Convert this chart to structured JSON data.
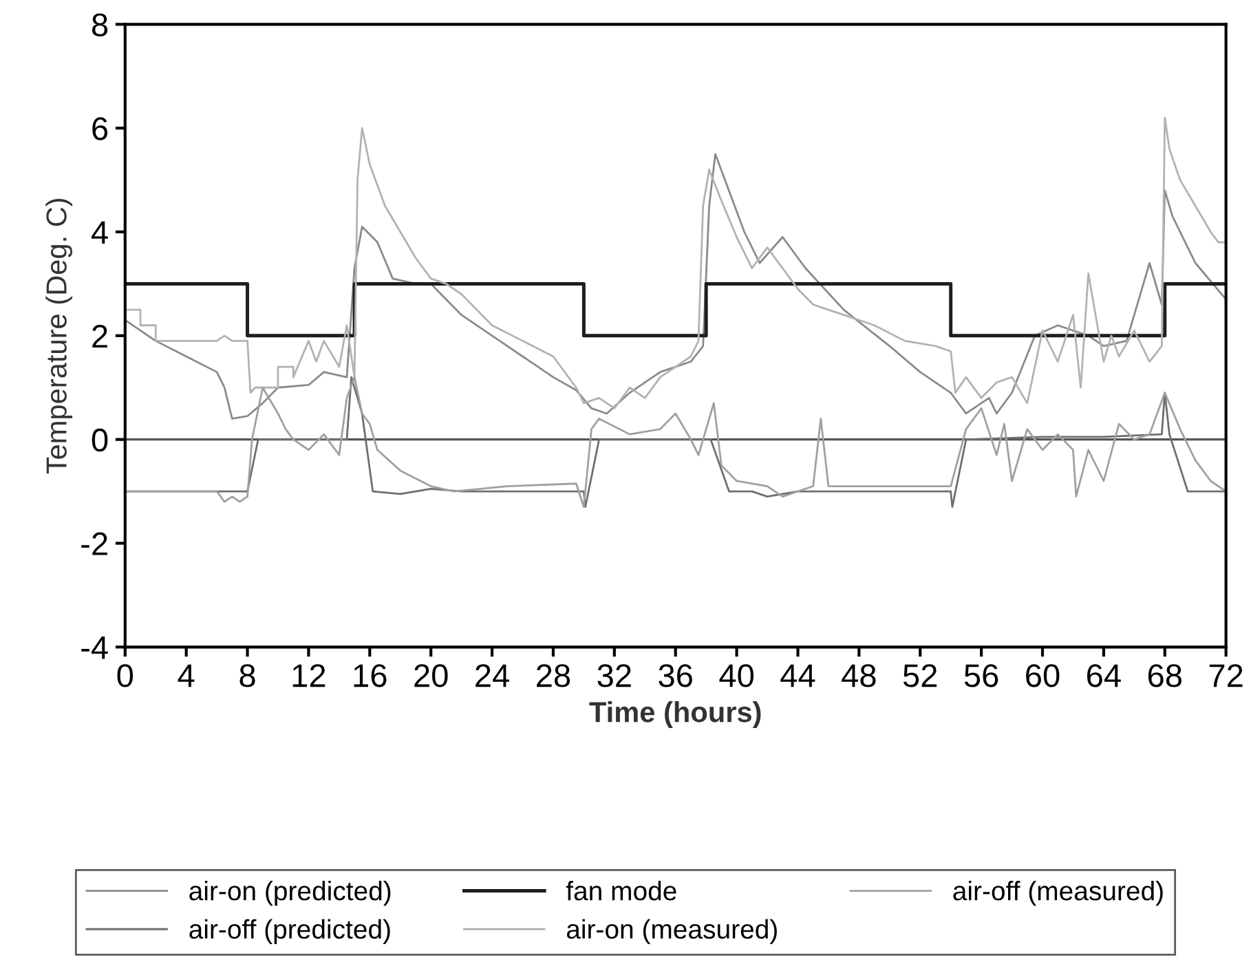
{
  "chart_data": {
    "type": "line",
    "xlabel": "Time (hours)",
    "ylabel": "Temperature (Deg. C)",
    "xlim": [
      0,
      72
    ],
    "ylim": [
      -4,
      8
    ],
    "xticks": [
      0,
      4,
      8,
      12,
      16,
      20,
      24,
      28,
      32,
      36,
      40,
      44,
      48,
      52,
      56,
      60,
      64,
      68,
      72
    ],
    "yticks": [
      -4,
      -2,
      0,
      2,
      4,
      6,
      8
    ],
    "grid": false,
    "legend": "bottom",
    "marker": "none",
    "line_style": "solid",
    "ref_lines": [
      {
        "axis": "y",
        "value": 0,
        "color": "#555555"
      }
    ],
    "series": [
      {
        "name": "air-on (predicted)",
        "color": "#8a8a8a",
        "x": [
          0,
          2,
          4,
          6,
          6.5,
          7,
          8,
          9,
          10,
          12,
          13,
          14.5,
          15,
          15.5,
          16.5,
          17.5,
          19,
          20,
          22,
          24,
          26,
          28,
          29.5,
          30.5,
          31.5,
          33,
          35,
          37,
          37.8,
          38.2,
          38.6,
          40.5,
          41.5,
          43,
          44.5,
          47,
          50,
          52,
          54,
          55,
          56.5,
          57,
          58,
          59.5,
          61,
          63,
          64,
          65.5,
          66.5,
          67,
          67.8,
          68,
          68.5,
          70,
          72
        ],
        "values": [
          2.3,
          1.9,
          1.6,
          1.3,
          1.0,
          0.4,
          0.45,
          0.7,
          1.0,
          1.05,
          1.3,
          1.2,
          3.3,
          4.1,
          3.8,
          3.1,
          3.0,
          3.0,
          2.4,
          2.0,
          1.6,
          1.2,
          0.95,
          0.6,
          0.5,
          0.9,
          1.3,
          1.5,
          1.8,
          4.5,
          5.5,
          4.0,
          3.4,
          3.9,
          3.3,
          2.5,
          1.8,
          1.3,
          0.9,
          0.5,
          0.8,
          0.5,
          0.9,
          2.0,
          2.2,
          2.0,
          1.8,
          1.9,
          2.9,
          3.4,
          2.6,
          4.8,
          4.3,
          3.4,
          2.7
        ]
      },
      {
        "name": "air-off (predicted)",
        "color": "#6e6e6e",
        "x": [
          0,
          8,
          8.7,
          14.5,
          14.8,
          15.5,
          16.2,
          18,
          20,
          22,
          26,
          30,
          30.1,
          31,
          38.3,
          39.5,
          41,
          42,
          44,
          46,
          50,
          54,
          54.1,
          55,
          60,
          64,
          67.8,
          68,
          68.3,
          69.5,
          72
        ],
        "values": [
          -1,
          -1,
          0,
          0,
          1.2,
          0.5,
          -1,
          -1.05,
          -0.95,
          -1,
          -1,
          -1,
          -1.3,
          0,
          0,
          -1,
          -1,
          -1.1,
          -1,
          -1,
          -1,
          -1,
          -1.3,
          0,
          0.05,
          0.05,
          0.1,
          0.9,
          0.1,
          -1,
          -1
        ]
      },
      {
        "name": "fan mode",
        "color": "#1e1e1e",
        "x": [
          0,
          8,
          8,
          15,
          15,
          30,
          30,
          38,
          38,
          54,
          54,
          68,
          68,
          72
        ],
        "values": [
          3,
          3,
          2,
          2,
          3,
          3,
          2,
          2,
          3,
          3,
          2,
          2,
          3,
          3
        ]
      },
      {
        "name": "air-on (measured)",
        "color": "#b2b2b2",
        "x": [
          0,
          1,
          1,
          2,
          2,
          6,
          6.5,
          7,
          8,
          8.2,
          8.5,
          10,
          10,
          11,
          11,
          12,
          12.5,
          13,
          14,
          14.5,
          15,
          15.2,
          15.5,
          16,
          17,
          18,
          19,
          20,
          21,
          22,
          23,
          24,
          26,
          28,
          29.5,
          30,
          31,
          32,
          33,
          34,
          35,
          36,
          37,
          37.5,
          37.8,
          38.2,
          39,
          40,
          41,
          42,
          43,
          44,
          45,
          47,
          49,
          51,
          53,
          54,
          54.3,
          55,
          56,
          57,
          58,
          59,
          60,
          61,
          62,
          62.5,
          63,
          64,
          64.5,
          65,
          66,
          67,
          67.8,
          68,
          68.3,
          69,
          70,
          71,
          71.5,
          72
        ],
        "values": [
          2.5,
          2.5,
          2.2,
          2.2,
          1.9,
          1.9,
          2.0,
          1.9,
          1.9,
          0.9,
          1.0,
          1.0,
          1.4,
          1.4,
          1.2,
          1.9,
          1.5,
          1.9,
          1.4,
          2.2,
          1.2,
          5.0,
          6.0,
          5.3,
          4.5,
          4.0,
          3.5,
          3.1,
          3.0,
          2.8,
          2.5,
          2.2,
          1.9,
          1.6,
          1.0,
          0.7,
          0.8,
          0.6,
          1.0,
          0.8,
          1.2,
          1.4,
          1.6,
          1.9,
          4.5,
          5.2,
          4.6,
          3.9,
          3.3,
          3.7,
          3.3,
          2.9,
          2.6,
          2.4,
          2.2,
          1.9,
          1.8,
          1.7,
          0.9,
          1.2,
          0.8,
          1.1,
          1.2,
          0.7,
          2.1,
          1.5,
          2.4,
          1.0,
          3.2,
          1.5,
          2.0,
          1.6,
          2.1,
          1.5,
          1.8,
          6.2,
          5.6,
          5.0,
          4.5,
          4.0,
          3.8,
          3.8
        ]
      },
      {
        "name": "air-off (measured)",
        "color": "#a0a0a0",
        "x": [
          0,
          6,
          6.5,
          7,
          7.5,
          8,
          8.3,
          9,
          10,
          10.5,
          11,
          12,
          13,
          14,
          14.5,
          15,
          15.5,
          16,
          16.5,
          18,
          20,
          21.5,
          25,
          29.5,
          30,
          30.5,
          31,
          33,
          35,
          36,
          37,
          37.5,
          38.5,
          39,
          40,
          42,
          43,
          45,
          45.5,
          46,
          50,
          54,
          55,
          56,
          57,
          57.5,
          58,
          59,
          60,
          61,
          62,
          62.2,
          63,
          64,
          65,
          66,
          67,
          68,
          69,
          70,
          71,
          72
        ],
        "values": [
          -1,
          -1,
          -1.2,
          -1.1,
          -1.2,
          -1.1,
          0,
          1.0,
          0.5,
          0.2,
          0,
          -0.2,
          0.1,
          -0.3,
          0.8,
          1.2,
          0.5,
          0.3,
          -0.2,
          -0.6,
          -0.9,
          -1,
          -0.9,
          -0.85,
          -1.3,
          0.2,
          0.4,
          0.1,
          0.2,
          0.5,
          0,
          -0.3,
          0.7,
          -0.5,
          -0.8,
          -0.9,
          -1.1,
          -0.9,
          0.4,
          -0.9,
          -0.9,
          -0.9,
          0.2,
          0.6,
          -0.3,
          0.3,
          -0.8,
          0.2,
          -0.2,
          0.1,
          -0.2,
          -1.1,
          -0.2,
          -0.8,
          0.3,
          0,
          0.1,
          0.9,
          0.2,
          -0.4,
          -0.8,
          -1.0
        ]
      }
    ]
  }
}
